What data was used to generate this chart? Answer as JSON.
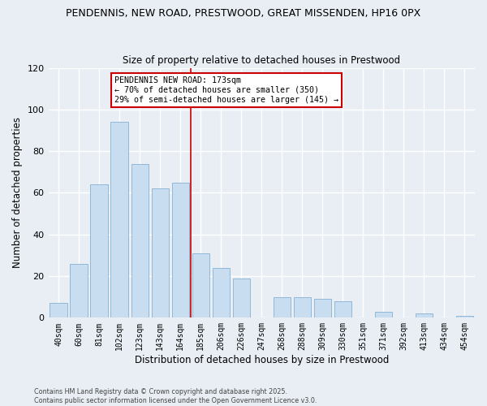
{
  "title1": "PENDENNIS, NEW ROAD, PRESTWOOD, GREAT MISSENDEN, HP16 0PX",
  "title2": "Size of property relative to detached houses in Prestwood",
  "xlabel": "Distribution of detached houses by size in Prestwood",
  "ylabel": "Number of detached properties",
  "bar_color": "#c8ddf0",
  "bar_edge_color": "#90b8d8",
  "categories": [
    "40sqm",
    "60sqm",
    "81sqm",
    "102sqm",
    "123sqm",
    "143sqm",
    "164sqm",
    "185sqm",
    "206sqm",
    "226sqm",
    "247sqm",
    "268sqm",
    "288sqm",
    "309sqm",
    "330sqm",
    "351sqm",
    "371sqm",
    "392sqm",
    "413sqm",
    "434sqm",
    "454sqm"
  ],
  "values": [
    7,
    26,
    64,
    94,
    74,
    62,
    65,
    31,
    24,
    19,
    0,
    10,
    10,
    9,
    8,
    0,
    3,
    0,
    2,
    0,
    1
  ],
  "ylim": [
    0,
    120
  ],
  "yticks": [
    0,
    20,
    40,
    60,
    80,
    100,
    120
  ],
  "vline_color": "#cc0000",
  "annotation_text": "PENDENNIS NEW ROAD: 173sqm\n← 70% of detached houses are smaller (350)\n29% of semi-detached houses are larger (145) →",
  "annotation_box_color": "#cc0000",
  "footer1": "Contains HM Land Registry data © Crown copyright and database right 2025.",
  "footer2": "Contains public sector information licensed under the Open Government Licence v3.0.",
  "bg_color": "#e8eef4",
  "grid_color": "#ffffff"
}
